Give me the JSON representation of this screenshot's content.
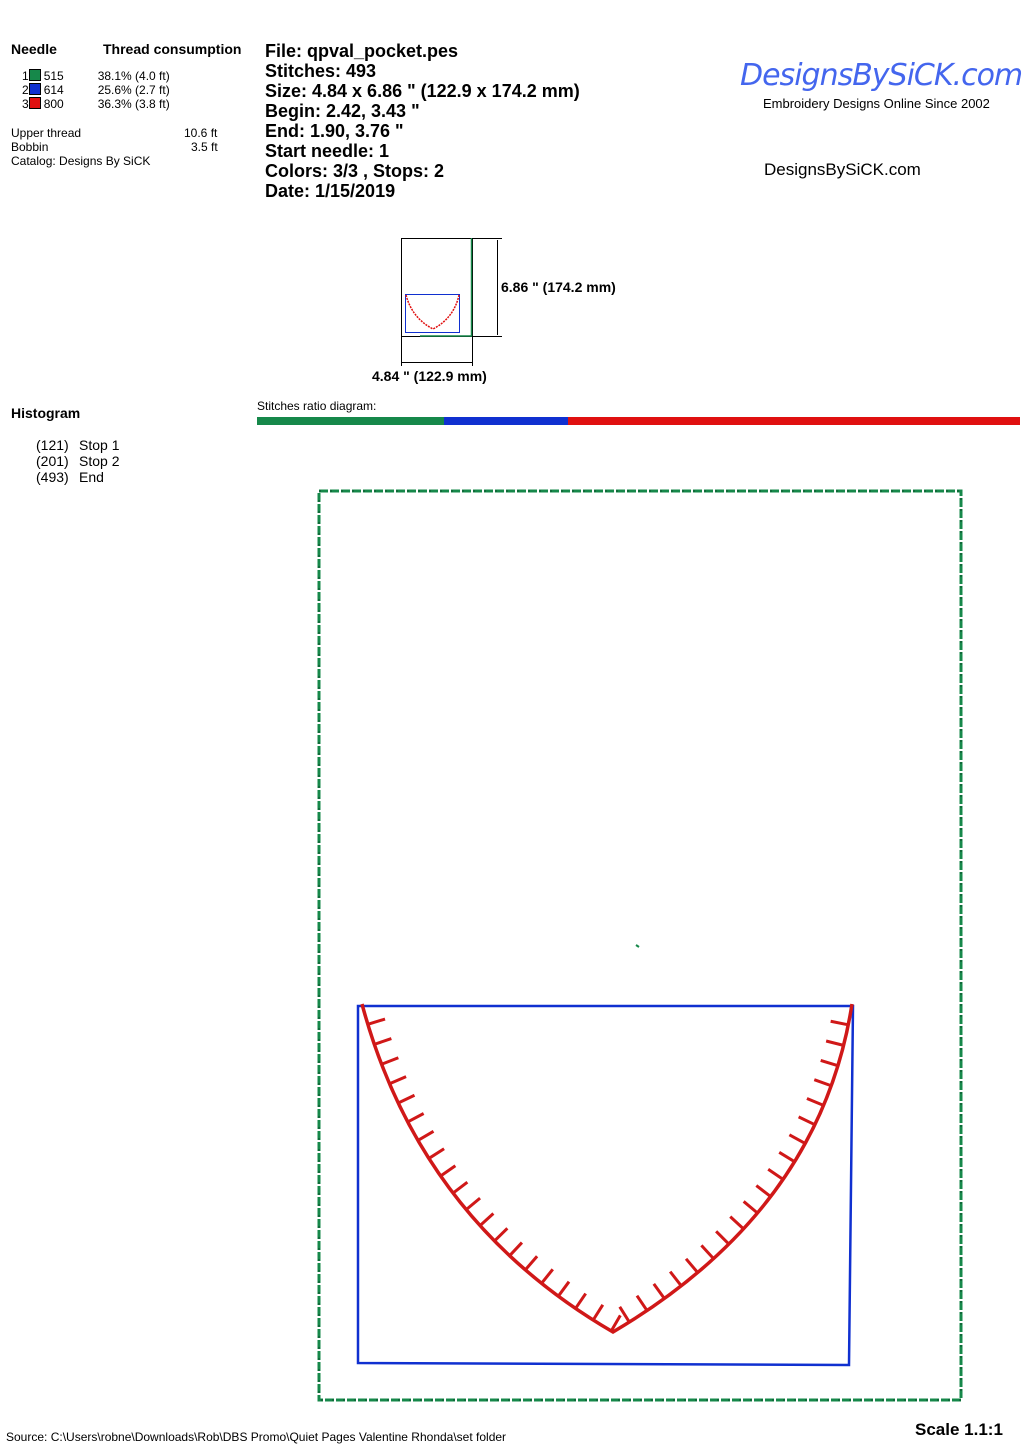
{
  "needle_table": {
    "header_needle": "Needle",
    "header_thread": "Thread consumption",
    "rows": [
      {
        "num": "1",
        "code": "515",
        "color": "#16884a",
        "consumption": "38.1% (4.0 ft)"
      },
      {
        "num": "2",
        "code": "614",
        "color": "#1030d0",
        "consumption": "25.6% (2.7 ft)"
      },
      {
        "num": "3",
        "code": "800",
        "color": "#e01010",
        "consumption": "36.3% (3.8 ft)"
      }
    ],
    "upper_thread_label": "Upper thread",
    "upper_thread_value": "10.6 ft",
    "bobbin_label": "Bobbin",
    "bobbin_value": "3.5 ft",
    "catalog": "Catalog: Designs By SiCK"
  },
  "info": {
    "file": "File: qpval_pocket.pes",
    "stitches": "Stitches: 493",
    "size": "Size: 4.84 x 6.86 \" (122.9 x 174.2 mm)",
    "begin": "Begin: 2.42, 3.43 \"",
    "end": "End: 1.90, 3.76 \"",
    "start_needle": "Start needle: 1",
    "colors": "Colors: 3/3 , Stops: 2",
    "date": "Date: 1/15/2019"
  },
  "logo": {
    "text": "DesignsBySiCK.com",
    "tagline": "Embroidery Designs Online Since 2002",
    "website": "DesignsBySiCK.com"
  },
  "thumbnail": {
    "height_label": "6.86 \" (174.2 mm)",
    "width_label": "4.84 \" (122.9 mm)"
  },
  "histogram": {
    "title": "Histogram",
    "items": [
      {
        "count": "(121)",
        "label": "Stop 1"
      },
      {
        "count": "(201)",
        "label": "Stop 2"
      },
      {
        "count": "(493)",
        "label": "End"
      }
    ]
  },
  "ratio": {
    "label": "Stitches ratio diagram:",
    "segments": [
      {
        "color": "#16884a",
        "percent": 24.5
      },
      {
        "color": "#1030d0",
        "percent": 16.3
      },
      {
        "color": "#e01010",
        "percent": 59.2
      }
    ]
  },
  "footer": {
    "source": "Source: C:\\Users\\robne\\Downloads\\Rob\\DBS Promo\\Quiet Pages Valentine Rhonda\\set folder",
    "scale": "Scale 1.1:1"
  }
}
